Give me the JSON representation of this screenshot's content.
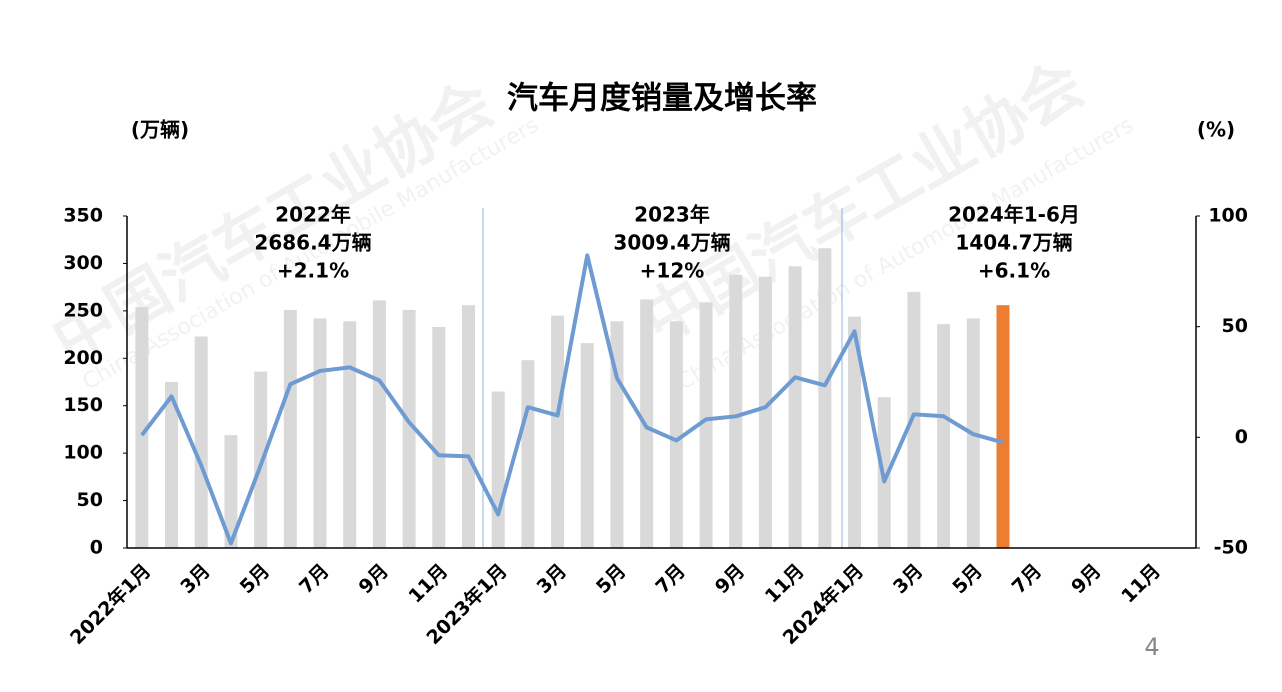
{
  "chart_data": {
    "type": "bar_line",
    "title": "汽车月度销量及增长率",
    "y_label": "(万辆)",
    "y2_label": "(%)",
    "page_number": "4",
    "watermark": "中国汽车工业协会",
    "watermark_sub": "China Association of Automobile Manufacturers",
    "categories": [
      "2022年1月",
      null,
      "3月",
      null,
      "5月",
      null,
      "7月",
      null,
      "9月",
      null,
      "11月",
      null,
      "2023年1月",
      null,
      "3月",
      null,
      "5月",
      null,
      "7月",
      null,
      "9月",
      null,
      "11月",
      null,
      "2024年1月",
      null,
      "3月",
      null,
      "5月",
      null,
      "7月",
      null,
      "9月",
      null,
      "11月",
      null
    ],
    "ylim": [
      0,
      350
    ],
    "yticks": [
      0,
      50,
      100,
      150,
      200,
      250,
      300,
      350
    ],
    "y2lim": [
      -50,
      100
    ],
    "y2ticks": [
      -50,
      0,
      50,
      100
    ],
    "series": [
      {
        "type": "bar",
        "color": "#d9d9d9",
        "colors": [
          "#d9d9d9",
          "#d9d9d9",
          "#d9d9d9",
          "#d9d9d9",
          "#d9d9d9",
          "#d9d9d9",
          "#d9d9d9",
          "#d9d9d9",
          "#d9d9d9",
          "#d9d9d9",
          "#d9d9d9",
          "#d9d9d9",
          "#d9d9d9",
          "#d9d9d9",
          "#d9d9d9",
          "#d9d9d9",
          "#d9d9d9",
          "#d9d9d9",
          "#d9d9d9",
          "#d9d9d9",
          "#d9d9d9",
          "#d9d9d9",
          "#d9d9d9",
          "#d9d9d9",
          "#d9d9d9",
          "#d9d9d9",
          "#d9d9d9",
          "#d9d9d9",
          "#d9d9d9",
          "#ed7d31",
          null,
          null,
          null,
          null,
          null,
          null
        ],
        "values": [
          254,
          175,
          223,
          119,
          186,
          251,
          242,
          239,
          261,
          251,
          233,
          256,
          165,
          198,
          245,
          216,
          239,
          262,
          239,
          259,
          288,
          286,
          297,
          316,
          244,
          159,
          270,
          236,
          242,
          256,
          null,
          null,
          null,
          null,
          null,
          null
        ]
      },
      {
        "type": "line",
        "axis": "y2",
        "color": "#6e9bd1",
        "values": [
          1,
          18.5,
          -12.7,
          -47.9,
          -12.7,
          24,
          30,
          31.6,
          25.7,
          6.8,
          -8.1,
          -8.6,
          -34.8,
          13.6,
          9.9,
          82.2,
          26.7,
          4.5,
          -1.4,
          8.1,
          9.5,
          13.6,
          27.1,
          23.5,
          47.9,
          -19.9,
          10.4,
          9.5,
          1.4,
          -2.3,
          null,
          null,
          null,
          null,
          null,
          null
        ]
      }
    ],
    "annotations": [
      [
        "2022年",
        "2686.4万辆",
        "+2.1%"
      ],
      [
        "2023年",
        "3009.4万辆",
        "+12%"
      ],
      [
        "2024年1-6月",
        "1404.7万辆",
        "+6.1%"
      ]
    ]
  }
}
